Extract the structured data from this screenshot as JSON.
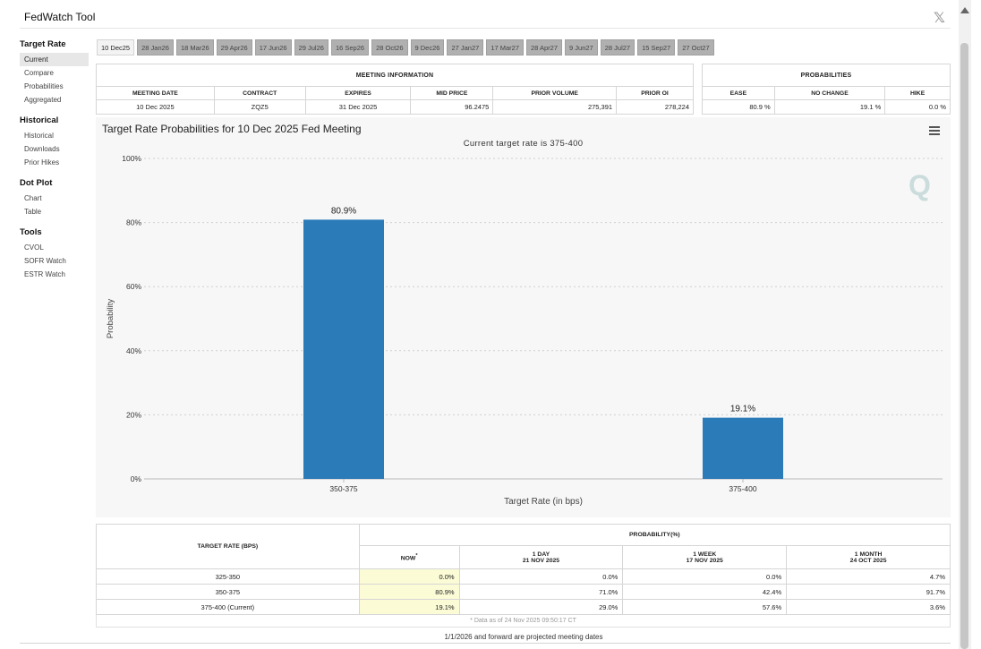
{
  "app": {
    "title": "FedWatch Tool",
    "close_glyph": "𝕏"
  },
  "sidebar": [
    {
      "heading": "Target Rate",
      "items": [
        {
          "label": "Current",
          "active": true
        },
        {
          "label": "Compare"
        },
        {
          "label": "Probabilities"
        },
        {
          "label": "Aggregated"
        }
      ]
    },
    {
      "heading": "Historical",
      "items": [
        {
          "label": "Historical"
        },
        {
          "label": "Downloads"
        },
        {
          "label": "Prior Hikes"
        }
      ]
    },
    {
      "heading": "Dot Plot",
      "items": [
        {
          "label": "Chart"
        },
        {
          "label": "Table"
        }
      ]
    },
    {
      "heading": "Tools",
      "items": [
        {
          "label": "CVOL"
        },
        {
          "label": "SOFR Watch"
        },
        {
          "label": "ESTR Watch"
        }
      ]
    }
  ],
  "tabs": [
    "10 Dec25",
    "28 Jan26",
    "18 Mar26",
    "29 Apr26",
    "17 Jun26",
    "29 Jul26",
    "16 Sep26",
    "28 Oct26",
    "9 Dec26",
    "27 Jan27",
    "17 Mar27",
    "28 Apr27",
    "9 Jun27",
    "28 Jul27",
    "15 Sep27",
    "27 Oct27"
  ],
  "active_tab": 0,
  "meeting": {
    "section": "MEETING INFORMATION",
    "headers": [
      "MEETING DATE",
      "CONTRACT",
      "EXPIRES",
      "MID PRICE",
      "PRIOR VOLUME",
      "PRIOR OI"
    ],
    "values": [
      "10 Dec 2025",
      "ZQZ5",
      "31 Dec 2025",
      "96.2475",
      "275,391",
      "278,224"
    ]
  },
  "probabilities": {
    "section": "PROBABILITIES",
    "headers": [
      "EASE",
      "NO CHANGE",
      "HIKE"
    ],
    "values": [
      "80.9 %",
      "19.1 %",
      "0.0 %"
    ]
  },
  "chart": {
    "title": "Target Rate Probabilities for 10 Dec 2025 Fed Meeting",
    "subtitle": "Current target rate is 375-400",
    "menu_icon": "hamburger-icon",
    "watermark": "Q"
  },
  "chart_data": {
    "type": "bar",
    "categories": [
      "350-375",
      "375-400"
    ],
    "values": [
      80.9,
      19.1
    ],
    "data_labels": [
      "80.9%",
      "19.1%"
    ],
    "xlabel": "Target Rate (in bps)",
    "ylabel": "Probability",
    "ylim": [
      0,
      100
    ],
    "yticks": [
      "0%",
      "20%",
      "40%",
      "60%",
      "80%",
      "100%"
    ],
    "grid": true,
    "bar_color": "#2b7bb9"
  },
  "rate_table": {
    "col_head": "TARGET RATE (BPS)",
    "prob_head": "PROBABILITY(%)",
    "sub_heads": [
      {
        "line1": "NOW",
        "sup": "*",
        "line2": ""
      },
      {
        "line1": "1 DAY",
        "line2": "21 NOV 2025"
      },
      {
        "line1": "1 WEEK",
        "line2": "17 NOV 2025"
      },
      {
        "line1": "1 MONTH",
        "line2": "24 OCT 2025"
      }
    ],
    "rows": [
      {
        "rate": "325-350",
        "now": "0.0%",
        "day": "0.0%",
        "week": "0.0%",
        "month": "4.7%"
      },
      {
        "rate": "350-375",
        "now": "80.9%",
        "day": "71.0%",
        "week": "42.4%",
        "month": "91.7%"
      },
      {
        "rate": "375-400 (Current)",
        "now": "19.1%",
        "day": "29.0%",
        "week": "57.6%",
        "month": "3.6%"
      }
    ],
    "note": "* Data as of 24 Nov 2025 09:50:17 CT"
  },
  "footer": "1/1/2026 and forward are projected meeting dates",
  "colors": {
    "accent": "#2b7bb9",
    "highlight": "#fbfbd6"
  }
}
